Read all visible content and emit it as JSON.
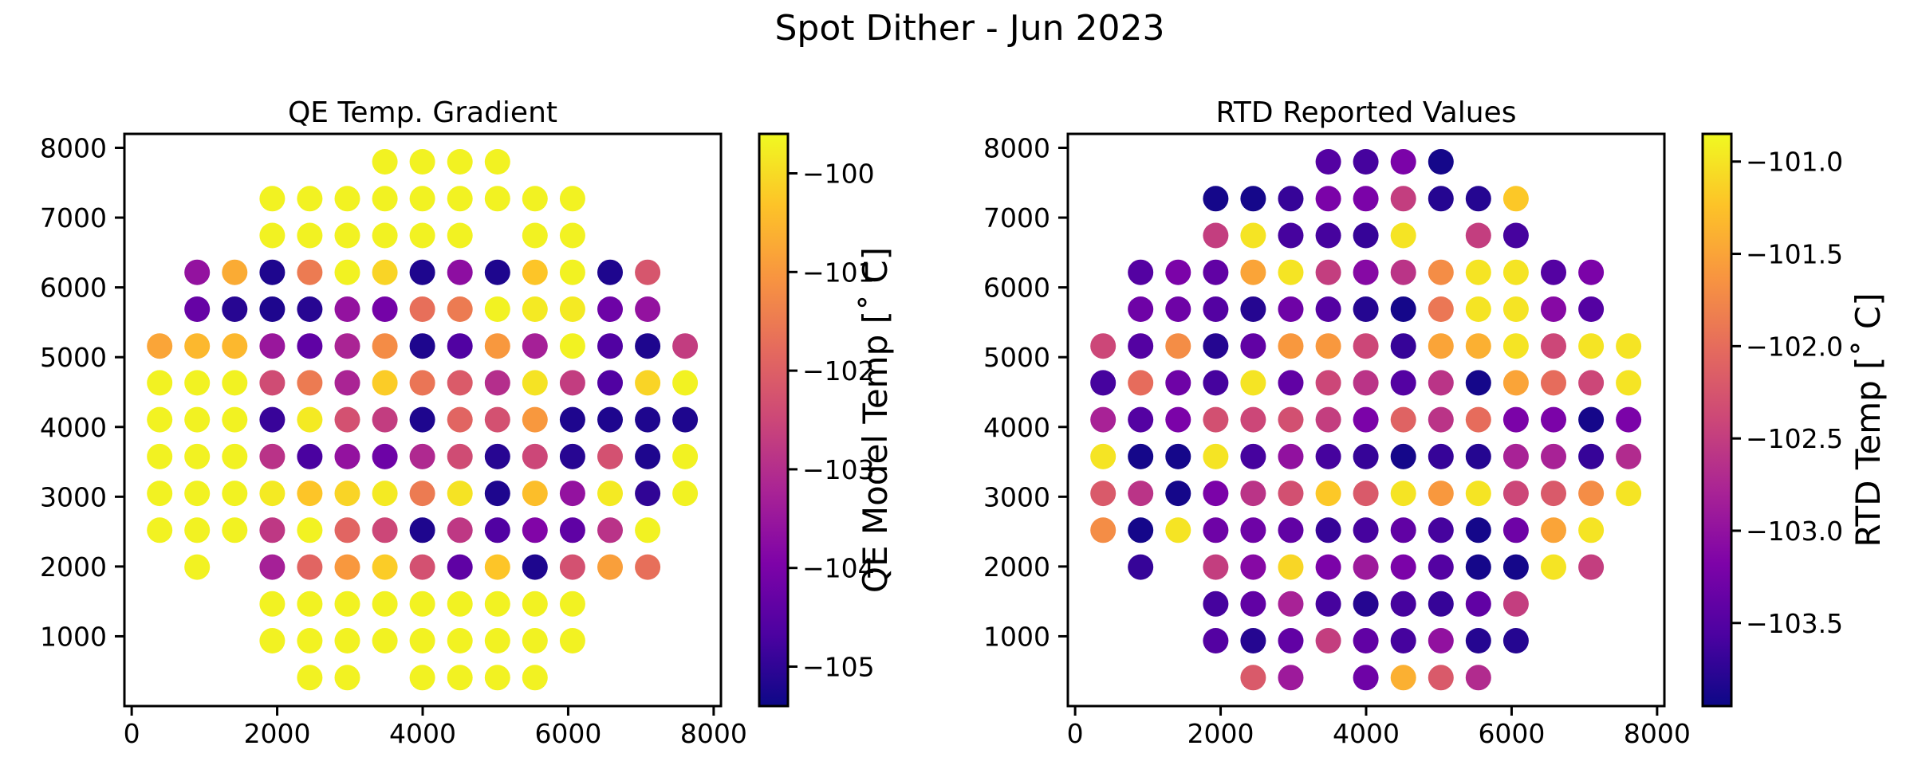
{
  "figure": {
    "suptitle": "Spot Dither - Jun 2023"
  },
  "chart_data": [
    {
      "type": "scatter",
      "title": "QE Temp. Gradient",
      "xlabel": "",
      "ylabel": "",
      "xlim": [
        -100,
        8100
      ],
      "ylim": [
        0,
        8200
      ],
      "xticks": [
        "0",
        "2000",
        "4000",
        "6000",
        "8000"
      ],
      "yticks": [
        "1000",
        "2000",
        "3000",
        "4000",
        "5000",
        "6000",
        "7000",
        "8000"
      ],
      "colorbar": {
        "label": "QE Model Temp [$^{\\circ}$C]",
        "display_label": "QE Model Temp [˚ C]",
        "vmin": -105.4,
        "vmax": -99.6,
        "ticks": [
          "−100",
          "−101",
          "−102",
          "−103",
          "−104",
          "−105"
        ],
        "colormap": "plasma"
      },
      "rows": [
        {
          "y": 7800,
          "x": [
            3480,
            3996,
            4512,
            5028
          ],
          "v": [
            -99.7,
            -99.7,
            -99.7,
            -99.7
          ]
        },
        {
          "y": 7272,
          "x": [
            1932,
            2448,
            2964,
            3480,
            3996,
            4512,
            5028,
            5544,
            6060
          ],
          "v": [
            -99.7,
            -99.7,
            -99.7,
            -99.7,
            -99.7,
            -99.7,
            -99.7,
            -99.7,
            -99.7
          ]
        },
        {
          "y": 6744,
          "x": [
            1932,
            2448,
            2964,
            3480,
            3996,
            4512,
            5544,
            6060
          ],
          "v": [
            -99.7,
            -99.7,
            -99.7,
            -99.7,
            -99.7,
            -99.7,
            -99.7,
            -99.7
          ]
        },
        {
          "y": 6216,
          "x": [
            900,
            1416,
            1932,
            2448,
            2964,
            3480,
            3996,
            4512,
            5028,
            5544,
            6060,
            6576,
            7092
          ],
          "v": [
            -103.6,
            -100.7,
            -105.2,
            -101.5,
            -99.7,
            -100.1,
            -105.2,
            -103.7,
            -105.2,
            -100.3,
            -99.7,
            -105.2,
            -102.2
          ]
        },
        {
          "y": 5688,
          "x": [
            900,
            1416,
            1932,
            2448,
            2964,
            3480,
            3996,
            4512,
            5028,
            5544,
            6060,
            6576,
            7092
          ],
          "v": [
            -104.3,
            -105.1,
            -105.2,
            -105.1,
            -103.6,
            -104.1,
            -101.7,
            -101.5,
            -99.7,
            -99.8,
            -99.8,
            -104.2,
            -103.6
          ]
        },
        {
          "y": 5160,
          "x": [
            384,
            900,
            1416,
            1932,
            2448,
            2964,
            3480,
            3996,
            4512,
            5028,
            5544,
            6060,
            6576,
            7092,
            7608
          ],
          "v": [
            -100.8,
            -100.5,
            -100.5,
            -103.5,
            -104.4,
            -103.2,
            -101.2,
            -105.2,
            -104.6,
            -101.0,
            -103.3,
            -99.7,
            -104.6,
            -105.2,
            -102.7
          ]
        },
        {
          "y": 4632,
          "x": [
            384,
            900,
            1416,
            1932,
            2448,
            2964,
            3480,
            3996,
            4512,
            5028,
            5544,
            6060,
            6576,
            7092,
            7608
          ],
          "v": [
            -99.7,
            -99.7,
            -99.7,
            -102.4,
            -101.5,
            -103.2,
            -100.2,
            -101.6,
            -102.1,
            -103.0,
            -99.9,
            -102.7,
            -104.6,
            -100.1,
            -99.7
          ]
        },
        {
          "y": 4104,
          "x": [
            384,
            900,
            1416,
            1932,
            2448,
            2964,
            3480,
            3996,
            4512,
            5028,
            5544,
            6060,
            6576,
            7092,
            7608
          ],
          "v": [
            -99.7,
            -99.7,
            -99.7,
            -104.9,
            -99.8,
            -102.3,
            -102.7,
            -105.2,
            -101.9,
            -102.3,
            -101.0,
            -105.2,
            -105.2,
            -105.2,
            -105.2
          ]
        },
        {
          "y": 3576,
          "x": [
            384,
            900,
            1416,
            1932,
            2448,
            2964,
            3480,
            3996,
            4512,
            5028,
            5544,
            6060,
            6576,
            7092,
            7608
          ],
          "v": [
            -99.7,
            -99.7,
            -99.7,
            -102.9,
            -104.7,
            -103.6,
            -104.2,
            -103.1,
            -102.4,
            -105.1,
            -102.5,
            -105.1,
            -102.3,
            -105.2,
            -99.7
          ]
        },
        {
          "y": 3048,
          "x": [
            384,
            900,
            1416,
            1932,
            2448,
            2964,
            3480,
            3996,
            4512,
            5028,
            5544,
            6060,
            6576,
            7092,
            7608
          ],
          "v": [
            -99.7,
            -99.7,
            -99.7,
            -99.8,
            -100.3,
            -100.1,
            -99.8,
            -101.5,
            -99.9,
            -105.2,
            -100.4,
            -103.6,
            -99.8,
            -105.0,
            -99.7
          ]
        },
        {
          "y": 2520,
          "x": [
            384,
            900,
            1416,
            1932,
            2448,
            2964,
            3480,
            3996,
            4512,
            5028,
            5544,
            6060,
            6576,
            7092
          ],
          "v": [
            -99.7,
            -99.7,
            -99.7,
            -102.8,
            -99.7,
            -101.9,
            -102.5,
            -105.2,
            -102.8,
            -104.6,
            -103.9,
            -104.4,
            -102.9,
            -99.7
          ]
        },
        {
          "y": 1992,
          "x": [
            900,
            1932,
            2448,
            2964,
            3480,
            3996,
            4512,
            5028,
            5544,
            6060,
            6576,
            7092
          ],
          "v": [
            -99.7,
            -103.3,
            -101.9,
            -101.0,
            -100.2,
            -102.3,
            -104.4,
            -100.3,
            -105.2,
            -102.3,
            -100.9,
            -101.7
          ]
        },
        {
          "y": 1464,
          "x": [
            1932,
            2448,
            2964,
            3480,
            3996,
            4512,
            5028,
            5544,
            6060
          ],
          "v": [
            -99.7,
            -99.7,
            -99.7,
            -99.7,
            -99.7,
            -99.7,
            -99.7,
            -99.7,
            -99.7
          ]
        },
        {
          "y": 936,
          "x": [
            1932,
            2448,
            2964,
            3480,
            3996,
            4512,
            5028,
            5544,
            6060
          ],
          "v": [
            -99.7,
            -99.7,
            -99.7,
            -99.7,
            -99.7,
            -99.7,
            -99.7,
            -99.7,
            -99.7
          ]
        },
        {
          "y": 408,
          "x": [
            2448,
            2964,
            3996,
            4512,
            5028,
            5544
          ],
          "v": [
            -99.7,
            -99.7,
            -99.7,
            -99.7,
            -99.7,
            -99.7
          ]
        }
      ]
    },
    {
      "type": "scatter",
      "title": "RTD Reported Values",
      "xlabel": "",
      "ylabel": "",
      "xlim": [
        -100,
        8100
      ],
      "ylim": [
        0,
        8200
      ],
      "xticks": [
        "0",
        "2000",
        "4000",
        "6000",
        "8000"
      ],
      "yticks": [
        "1000",
        "2000",
        "3000",
        "4000",
        "5000",
        "6000",
        "7000",
        "8000"
      ],
      "colorbar": {
        "label": "RTD Temp [$^{\\circ}$C]",
        "display_label": "RTD Temp [˚ C]",
        "vmin": -103.95,
        "vmax": -100.85,
        "ticks": [
          "−101.0",
          "−101.5",
          "−102.0",
          "−102.5",
          "−103.0",
          "−103.5"
        ],
        "colormap": "plasma"
      },
      "rows": [
        {
          "y": 7800,
          "x": [
            3480,
            3996,
            4512,
            5028
          ],
          "v": [
            -103.5,
            -103.6,
            -103.2,
            -103.9
          ]
        },
        {
          "y": 7272,
          "x": [
            1932,
            2448,
            2964,
            3480,
            3996,
            4512,
            5028,
            5544,
            6060
          ],
          "v": [
            -103.9,
            -103.9,
            -103.7,
            -103.2,
            -103.2,
            -102.5,
            -103.8,
            -103.8,
            -101.2
          ]
        },
        {
          "y": 6744,
          "x": [
            1932,
            2448,
            2964,
            3480,
            3996,
            4512,
            5544,
            6060
          ],
          "v": [
            -102.5,
            -101.0,
            -103.6,
            -103.6,
            -103.7,
            -101.0,
            -102.5,
            -103.6
          ]
        },
        {
          "y": 6216,
          "x": [
            900,
            1416,
            1932,
            2448,
            2964,
            3480,
            3996,
            4512,
            5028,
            5544,
            6060,
            6576,
            7092
          ],
          "v": [
            -103.5,
            -103.2,
            -103.4,
            -101.5,
            -101.0,
            -102.5,
            -103.1,
            -102.6,
            -101.7,
            -101.0,
            -101.0,
            -103.5,
            -103.2
          ]
        },
        {
          "y": 5688,
          "x": [
            900,
            1416,
            1932,
            2448,
            2964,
            3480,
            3996,
            4512,
            5028,
            5544,
            6060,
            6576,
            7092
          ],
          "v": [
            -103.3,
            -103.3,
            -103.5,
            -103.8,
            -103.3,
            -103.5,
            -103.8,
            -103.9,
            -101.9,
            -101.0,
            -101.0,
            -103.1,
            -103.5
          ]
        },
        {
          "y": 5160,
          "x": [
            384,
            900,
            1416,
            1932,
            2448,
            2964,
            3480,
            3996,
            4512,
            5028,
            5544,
            6060,
            6576,
            7092,
            7608
          ],
          "v": [
            -102.4,
            -103.5,
            -101.7,
            -103.8,
            -103.4,
            -101.6,
            -101.6,
            -102.4,
            -103.7,
            -101.5,
            -101.4,
            -101.0,
            -102.4,
            -101.0,
            -101.0
          ]
        },
        {
          "y": 4632,
          "x": [
            384,
            900,
            1416,
            1932,
            2448,
            2964,
            3480,
            3996,
            4512,
            5028,
            5544,
            6060,
            6576,
            7092,
            7608
          ],
          "v": [
            -103.6,
            -102.0,
            -103.3,
            -103.6,
            -101.0,
            -103.4,
            -102.4,
            -102.6,
            -103.5,
            -102.6,
            -103.9,
            -101.5,
            -102.0,
            -102.4,
            -101.0
          ]
        },
        {
          "y": 4104,
          "x": [
            384,
            900,
            1416,
            1932,
            2448,
            2964,
            3480,
            3996,
            4512,
            5028,
            5544,
            6060,
            6576,
            7092,
            7608
          ],
          "v": [
            -102.8,
            -103.5,
            -103.2,
            -102.3,
            -102.4,
            -102.3,
            -102.5,
            -103.2,
            -102.1,
            -102.6,
            -102.0,
            -103.2,
            -103.2,
            -103.9,
            -103.2
          ]
        },
        {
          "y": 3576,
          "x": [
            384,
            900,
            1416,
            1932,
            2448,
            2964,
            3480,
            3996,
            4512,
            5028,
            5544,
            6060,
            6576,
            7092,
            7608
          ],
          "v": [
            -101.0,
            -103.9,
            -103.9,
            -101.0,
            -103.6,
            -103.0,
            -103.6,
            -103.7,
            -103.9,
            -103.7,
            -103.8,
            -102.8,
            -102.8,
            -103.7,
            -102.7
          ]
        },
        {
          "y": 3048,
          "x": [
            384,
            900,
            1416,
            1932,
            2448,
            2964,
            3480,
            3996,
            4512,
            5028,
            5544,
            6060,
            6576,
            7092,
            7608
          ],
          "v": [
            -102.2,
            -102.6,
            -103.9,
            -103.2,
            -102.6,
            -102.3,
            -101.2,
            -102.2,
            -101.0,
            -101.6,
            -101.0,
            -102.4,
            -102.2,
            -101.7,
            -101.0
          ]
        },
        {
          "y": 2520,
          "x": [
            384,
            900,
            1416,
            1932,
            2448,
            2964,
            3480,
            3996,
            4512,
            5028,
            5544,
            6060,
            6576,
            7092
          ],
          "v": [
            -101.7,
            -103.9,
            -101.0,
            -103.3,
            -103.3,
            -103.4,
            -103.7,
            -103.6,
            -103.4,
            -103.6,
            -103.9,
            -103.3,
            -101.5,
            -101.0
          ]
        },
        {
          "y": 1992,
          "x": [
            900,
            1932,
            2448,
            2964,
            3480,
            3996,
            4512,
            5028,
            5544,
            6060,
            6576,
            7092
          ],
          "v": [
            -103.7,
            -102.5,
            -103.1,
            -101.1,
            -103.2,
            -102.9,
            -103.2,
            -103.5,
            -103.9,
            -103.9,
            -101.0,
            -102.5
          ]
        },
        {
          "y": 1464,
          "x": [
            1932,
            2448,
            2964,
            3480,
            3996,
            4512,
            5028,
            5544,
            6060
          ],
          "v": [
            -103.6,
            -103.4,
            -102.8,
            -103.6,
            -103.8,
            -103.6,
            -103.7,
            -103.4,
            -102.5
          ]
        },
        {
          "y": 936,
          "x": [
            1932,
            2448,
            2964,
            3480,
            3996,
            4512,
            5028,
            5544,
            6060
          ],
          "v": [
            -103.5,
            -103.8,
            -103.4,
            -102.5,
            -103.4,
            -103.6,
            -103.0,
            -103.8,
            -103.8
          ]
        },
        {
          "y": 408,
          "x": [
            2448,
            2964,
            3996,
            4512,
            5028,
            5544
          ],
          "v": [
            -102.2,
            -102.9,
            -103.3,
            -101.4,
            -102.2,
            -102.7
          ]
        }
      ]
    }
  ]
}
